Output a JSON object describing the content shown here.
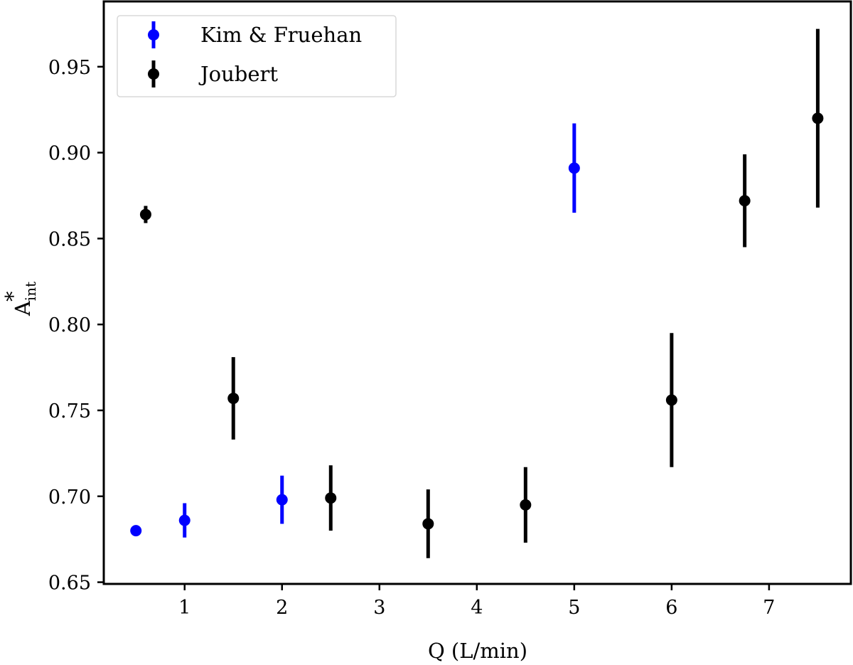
{
  "chart_data": {
    "type": "scatter",
    "title": "",
    "xlabel": "Q (L/min)",
    "ylabel": "A*_int",
    "ylabel_main": "A",
    "ylabel_sup": "*",
    "ylabel_sub": "int",
    "xlim": [
      0.17,
      7.84
    ],
    "ylim": [
      0.649,
      0.988
    ],
    "xticks": [
      1,
      2,
      3,
      4,
      5,
      6,
      7
    ],
    "xtick_labels": [
      "1",
      "2",
      "3",
      "4",
      "5",
      "6",
      "7"
    ],
    "yticks": [
      0.65,
      0.7,
      0.75,
      0.8,
      0.85,
      0.9,
      0.95
    ],
    "ytick_labels": [
      "0.65",
      "0.70",
      "0.75",
      "0.80",
      "0.85",
      "0.90",
      "0.95"
    ],
    "grid": false,
    "legend_position": "upper left",
    "error_bars": true,
    "series": [
      {
        "name": "Kim & Fruehan",
        "color": "#0000ff",
        "x": [
          0.5,
          1.0,
          2.0,
          5.0
        ],
        "y": [
          0.68,
          0.686,
          0.698,
          0.891
        ],
        "yerr": [
          0.002,
          0.01,
          0.014,
          0.026
        ]
      },
      {
        "name": "Joubert",
        "color": "#000000",
        "x": [
          0.6,
          1.5,
          2.5,
          3.5,
          4.5,
          6.0,
          6.75,
          7.5
        ],
        "y": [
          0.864,
          0.757,
          0.699,
          0.684,
          0.695,
          0.756,
          0.872,
          0.92
        ],
        "yerr": [
          0.005,
          0.024,
          0.019,
          0.02,
          0.022,
          0.039,
          0.027,
          0.052
        ]
      }
    ]
  }
}
